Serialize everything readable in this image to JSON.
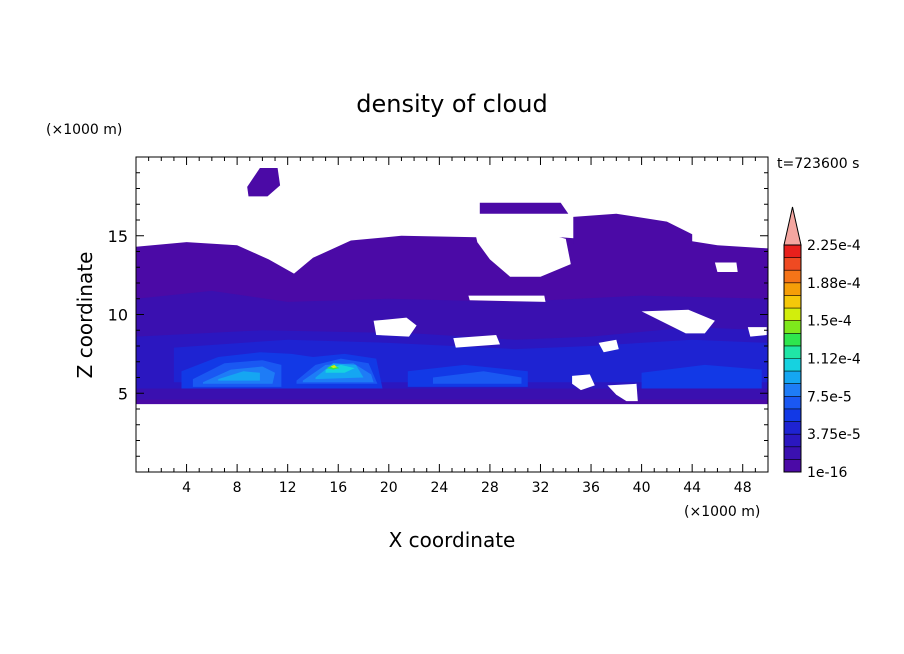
{
  "chart_data": {
    "type": "heatmap",
    "title": "density of cloud",
    "xlabel": "X coordinate",
    "ylabel": "Z coordinate",
    "x_unit": "(×1000 m)",
    "y_unit": "(×1000 m)",
    "time_label": "t=723600 s",
    "xlim": [
      0,
      50
    ],
    "ylim": [
      0,
      20
    ],
    "xticks": [
      4,
      8,
      12,
      16,
      20,
      24,
      28,
      32,
      36,
      40,
      44,
      48
    ],
    "yticks": [
      5,
      10,
      15
    ],
    "colorbar": {
      "levels": [
        "2.25e-4",
        "1.88e-4",
        "1.5e-4",
        "1.12e-4",
        "7.5e-5",
        "3.75e-5",
        "1e-16"
      ],
      "colors": [
        "#4b0aa6",
        "#3a10b0",
        "#2b17c0",
        "#1e23d2",
        "#1239e6",
        "#1a58f2",
        "#1e7cf6",
        "#15a6f2",
        "#16d2e0",
        "#20e6a6",
        "#2ee64e",
        "#7ee81c",
        "#d2ee0c",
        "#f5c80a",
        "#f59e08",
        "#f57418",
        "#ef4a22",
        "#e8201c"
      ],
      "extend_color": "#f4a6a0"
    },
    "regions": [
      {
        "level": 0,
        "shape": [
          [
            0,
            14.3
          ],
          [
            4,
            14.6
          ],
          [
            8,
            14.4
          ],
          [
            10.5,
            13.5
          ],
          [
            12.5,
            12.6
          ],
          [
            14,
            13.6
          ],
          [
            17,
            14.7
          ],
          [
            21,
            15
          ],
          [
            27,
            14.9
          ],
          [
            32,
            15
          ],
          [
            37,
            14.7
          ],
          [
            42,
            14.9
          ],
          [
            46,
            14.4
          ],
          [
            50,
            14.2
          ],
          [
            50,
            4.3
          ],
          [
            0,
            4.3
          ]
        ]
      },
      {
        "level": 0,
        "shape": [
          [
            27.2,
            17.1
          ],
          [
            33.6,
            17.1
          ],
          [
            34.2,
            16.4
          ],
          [
            27.2,
            16.4
          ]
        ]
      },
      {
        "level": 0,
        "shape": [
          [
            8.8,
            18.1
          ],
          [
            9.8,
            19.3
          ],
          [
            11.2,
            19.3
          ],
          [
            11.4,
            18.2
          ],
          [
            10.4,
            17.5
          ],
          [
            8.9,
            17.5
          ]
        ]
      },
      {
        "level": 0,
        "shape": [
          [
            34.6,
            16.2
          ],
          [
            38,
            16.4
          ],
          [
            42,
            15.9
          ],
          [
            44,
            15.1
          ],
          [
            44,
            14.5
          ],
          [
            34.6,
            14.5
          ]
        ]
      },
      {
        "level": 1,
        "shape": [
          [
            0,
            11
          ],
          [
            6,
            11.5
          ],
          [
            12,
            10.8
          ],
          [
            20,
            11
          ],
          [
            30,
            10.8
          ],
          [
            40,
            11.2
          ],
          [
            50,
            11
          ],
          [
            50,
            9.3
          ],
          [
            0,
            9.3
          ]
        ]
      },
      {
        "level": 1,
        "shape": [
          [
            0,
            9.3
          ],
          [
            50,
            9.3
          ],
          [
            50,
            4.6
          ],
          [
            0,
            4.6
          ]
        ]
      },
      {
        "level": 2,
        "shape": [
          [
            0,
            8.6
          ],
          [
            10,
            9
          ],
          [
            22,
            8.8
          ],
          [
            30,
            8.4
          ],
          [
            36,
            8.6
          ],
          [
            44,
            9.2
          ],
          [
            50,
            9
          ],
          [
            50,
            5.3
          ],
          [
            0,
            5.3
          ]
        ]
      },
      {
        "level": 3,
        "shape": [
          [
            3,
            7.9
          ],
          [
            12,
            8.4
          ],
          [
            20,
            8.2
          ],
          [
            30,
            7.8
          ],
          [
            36,
            8
          ],
          [
            44,
            8.4
          ],
          [
            50,
            8.2
          ],
          [
            50,
            5.7
          ],
          [
            3,
            5.7
          ]
        ]
      },
      {
        "level": 4,
        "shape": [
          [
            3.6,
            6.4
          ],
          [
            6.5,
            7.3
          ],
          [
            9.8,
            7.6
          ],
          [
            12.3,
            7.5
          ],
          [
            14,
            7.3
          ],
          [
            14,
            5.3
          ],
          [
            3.6,
            5.3
          ]
        ]
      },
      {
        "level": 4,
        "shape": [
          [
            14,
            7.3
          ],
          [
            16.5,
            7.5
          ],
          [
            19,
            7.2
          ],
          [
            19.5,
            5.3
          ],
          [
            14,
            5.3
          ]
        ]
      },
      {
        "level": 4,
        "shape": [
          [
            21.5,
            6.4
          ],
          [
            26,
            6.8
          ],
          [
            31,
            6.4
          ],
          [
            31,
            5.4
          ],
          [
            21.5,
            5.4
          ]
        ]
      },
      {
        "level": 4,
        "shape": [
          [
            40,
            6.3
          ],
          [
            45,
            6.8
          ],
          [
            49.5,
            6.5
          ],
          [
            49.5,
            5.3
          ],
          [
            40,
            5.3
          ]
        ]
      },
      {
        "level": 5,
        "shape": [
          [
            4.5,
            5.9
          ],
          [
            7,
            6.9
          ],
          [
            10,
            7.1
          ],
          [
            11.5,
            6.8
          ],
          [
            11.5,
            5.4
          ],
          [
            4.5,
            5.4
          ]
        ]
      },
      {
        "level": 5,
        "shape": [
          [
            12.7,
            5.8
          ],
          [
            14.2,
            6.8
          ],
          [
            16.2,
            7.2
          ],
          [
            18.4,
            6.9
          ],
          [
            19.1,
            5.6
          ],
          [
            12.7,
            5.6
          ]
        ]
      },
      {
        "level": 5,
        "shape": [
          [
            23.5,
            6
          ],
          [
            27.5,
            6.4
          ],
          [
            30.5,
            6
          ],
          [
            30.5,
            5.6
          ],
          [
            23.5,
            5.6
          ]
        ]
      },
      {
        "level": 6,
        "shape": [
          [
            5.3,
            5.7
          ],
          [
            7.5,
            6.5
          ],
          [
            10,
            6.7
          ],
          [
            11,
            6.3
          ],
          [
            10.8,
            5.6
          ],
          [
            5.3,
            5.6
          ]
        ]
      },
      {
        "level": 6,
        "shape": [
          [
            13.2,
            5.8
          ],
          [
            15,
            6.8
          ],
          [
            17.2,
            6.9
          ],
          [
            18.6,
            6.2
          ],
          [
            18.8,
            5.7
          ],
          [
            13.2,
            5.7
          ]
        ]
      },
      {
        "level": 7,
        "shape": [
          [
            6.5,
            5.9
          ],
          [
            8.5,
            6.4
          ],
          [
            9.8,
            6.3
          ],
          [
            9.8,
            5.8
          ],
          [
            6.5,
            5.8
          ]
        ]
      },
      {
        "level": 7,
        "shape": [
          [
            14.2,
            6
          ],
          [
            15.6,
            6.9
          ],
          [
            17.4,
            6.8
          ],
          [
            18,
            6
          ],
          [
            14.2,
            5.9
          ]
        ]
      },
      {
        "level": 8,
        "shape": [
          [
            15,
            6.5
          ],
          [
            16.2,
            6.8
          ],
          [
            17.3,
            6.6
          ],
          [
            16.5,
            6.3
          ],
          [
            15,
            6.3
          ]
        ]
      },
      {
        "level": 10,
        "shape": [
          [
            15.1,
            6.6
          ],
          [
            15.6,
            6.8
          ],
          [
            16.1,
            6.6
          ],
          [
            15.6,
            6.5
          ]
        ]
      },
      {
        "level": 12,
        "shape": [
          [
            15.4,
            6.7
          ],
          [
            15.7,
            6.8
          ],
          [
            15.9,
            6.65
          ],
          [
            15.6,
            6.6
          ]
        ]
      }
    ],
    "gaps": [
      {
        "shape": [
          [
            0,
            4.3
          ],
          [
            50,
            4.3
          ],
          [
            50,
            0
          ],
          [
            0,
            0
          ]
        ]
      },
      {
        "shape": [
          [
            26.8,
            15.3
          ],
          [
            31.8,
            15.3
          ],
          [
            34,
            14.8
          ],
          [
            34.4,
            13.2
          ],
          [
            32,
            12.4
          ],
          [
            29.6,
            12.4
          ],
          [
            28,
            13.5
          ],
          [
            27,
            14.6
          ]
        ]
      },
      {
        "shape": [
          [
            45.8,
            13.3
          ],
          [
            47.5,
            13.3
          ],
          [
            47.6,
            12.7
          ],
          [
            46,
            12.7
          ]
        ]
      },
      {
        "shape": [
          [
            25.1,
            8.5
          ],
          [
            28.5,
            8.7
          ],
          [
            28.8,
            8.1
          ],
          [
            25.3,
            7.9
          ]
        ]
      },
      {
        "shape": [
          [
            18.8,
            9.6
          ],
          [
            21.4,
            9.8
          ],
          [
            22.2,
            9.3
          ],
          [
            21.6,
            8.6
          ],
          [
            19,
            8.7
          ]
        ]
      },
      {
        "shape": [
          [
            26.3,
            11.2
          ],
          [
            32.3,
            11.2
          ],
          [
            32.4,
            10.8
          ],
          [
            26.4,
            10.9
          ]
        ]
      },
      {
        "shape": [
          [
            40,
            10.2
          ],
          [
            43.7,
            10.3
          ],
          [
            45.8,
            9.6
          ],
          [
            45,
            8.8
          ],
          [
            43.5,
            8.8
          ],
          [
            41,
            9.8
          ]
        ]
      },
      {
        "shape": [
          [
            48.4,
            9.2
          ],
          [
            49.9,
            9.2
          ],
          [
            49.9,
            8.7
          ],
          [
            48.6,
            8.6
          ]
        ]
      },
      {
        "shape": [
          [
            34.5,
            6.1
          ],
          [
            35.9,
            6.2
          ],
          [
            36.3,
            5.5
          ],
          [
            35.2,
            5.2
          ],
          [
            34.5,
            5.6
          ]
        ]
      },
      {
        "shape": [
          [
            37.3,
            5.5
          ],
          [
            39.6,
            5.6
          ],
          [
            39.7,
            4.5
          ],
          [
            38.8,
            4.5
          ],
          [
            38,
            4.9
          ]
        ]
      },
      {
        "shape": [
          [
            36.6,
            8.2
          ],
          [
            38,
            8.4
          ],
          [
            38.2,
            7.8
          ],
          [
            37,
            7.6
          ]
        ]
      }
    ]
  }
}
